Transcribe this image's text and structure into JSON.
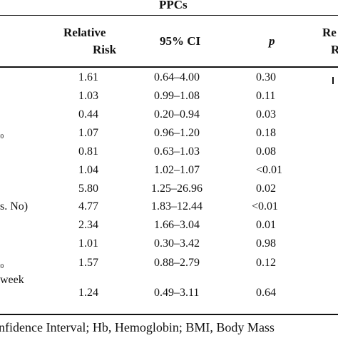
{
  "table": {
    "group_header": "PPCs",
    "columns": {
      "relative_risk_line1": "Relative",
      "relative_risk_line2": "Risk",
      "ci": "95% CI",
      "p": "p",
      "cut_header_line1": "Re",
      "cut_header_line2": "R"
    },
    "row_labels_partial": {
      "r4": "₀",
      "r8": "s. No)",
      "r11": "₀",
      "r12": "week"
    },
    "rows": [
      {
        "rr": "1.61",
        "ci": "0.64–4.00",
        "p": "0.30"
      },
      {
        "rr": "1.03",
        "ci": "0.99–1.08",
        "p": "0.11"
      },
      {
        "rr": "0.44",
        "ci": "0.20–0.94",
        "p": "0.03"
      },
      {
        "rr": "1.07",
        "ci": "0.96–1.20",
        "p": "0.18"
      },
      {
        "rr": "0.81",
        "ci": "0.63–1.03",
        "p": "0.08"
      },
      {
        "rr": "1.04",
        "ci": "1.02–1.07",
        "p": "<0.01"
      },
      {
        "rr": "5.80",
        "ci": "1.25–26.96",
        "p": "0.02"
      },
      {
        "rr": "4.77",
        "ci": "1.83–12.44",
        "p": "<0.01"
      },
      {
        "rr": "2.34",
        "ci": "1.66–3.04",
        "p": "0.01"
      },
      {
        "rr": "1.01",
        "ci": "0.30–3.42",
        "p": "0.98"
      },
      {
        "rr": "1.57",
        "ci": "0.88–2.79",
        "p": "0.12"
      },
      {
        "rr": "1.24",
        "ci": "0.49–3.11",
        "p": "0.64"
      }
    ]
  },
  "footnote": "nfidence Interval; Hb, Hemoglobin; BMI, Body Mass"
}
